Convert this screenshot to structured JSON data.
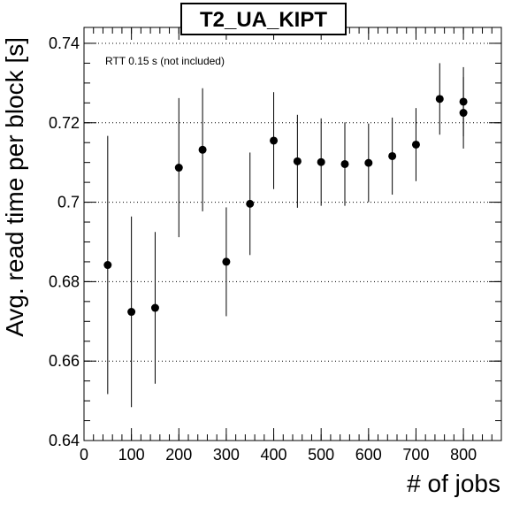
{
  "chart_data": {
    "type": "scatter",
    "title": "T2_UA_KIPT",
    "xlabel": "# of jobs",
    "ylabel": "Avg. read time per block [s]",
    "annotation": "RTT 0.15 s (not included)",
    "xlim": [
      0,
      880
    ],
    "ylim": [
      0.64,
      0.744
    ],
    "x_ticks": [
      0,
      100,
      200,
      300,
      400,
      500,
      600,
      700,
      800
    ],
    "y_ticks": [
      0.64,
      0.66,
      0.68,
      0.7,
      0.72,
      0.74
    ],
    "y_tick_labels": [
      "0.64",
      "0.66",
      "0.68",
      "0.7",
      "0.72",
      "0.74"
    ],
    "grid": "horizontal dotted",
    "series": [
      {
        "points": [
          {
            "x": 50,
            "y": 0.6842,
            "err": 0.0325
          },
          {
            "x": 100,
            "y": 0.6724,
            "err": 0.024
          },
          {
            "x": 150,
            "y": 0.6734,
            "err": 0.0191
          },
          {
            "x": 200,
            "y": 0.7087,
            "err": 0.0175
          },
          {
            "x": 250,
            "y": 0.7132,
            "err": 0.0155
          },
          {
            "x": 300,
            "y": 0.685,
            "err": 0.0137
          },
          {
            "x": 350,
            "y": 0.6996,
            "err": 0.0129
          },
          {
            "x": 400,
            "y": 0.7155,
            "err": 0.0122
          },
          {
            "x": 450,
            "y": 0.7103,
            "err": 0.0117
          },
          {
            "x": 500,
            "y": 0.7101,
            "err": 0.011
          },
          {
            "x": 550,
            "y": 0.7096,
            "err": 0.0105
          },
          {
            "x": 600,
            "y": 0.7099,
            "err": 0.0099
          },
          {
            "x": 650,
            "y": 0.7116,
            "err": 0.0097
          },
          {
            "x": 700,
            "y": 0.7145,
            "err": 0.0092
          },
          {
            "x": 750,
            "y": 0.726,
            "err": 0.009
          },
          {
            "x": 800,
            "y": 0.7225,
            "err": 0.009
          },
          {
            "x": 800,
            "y": 0.7253,
            "err": 0.0087
          }
        ]
      }
    ]
  }
}
